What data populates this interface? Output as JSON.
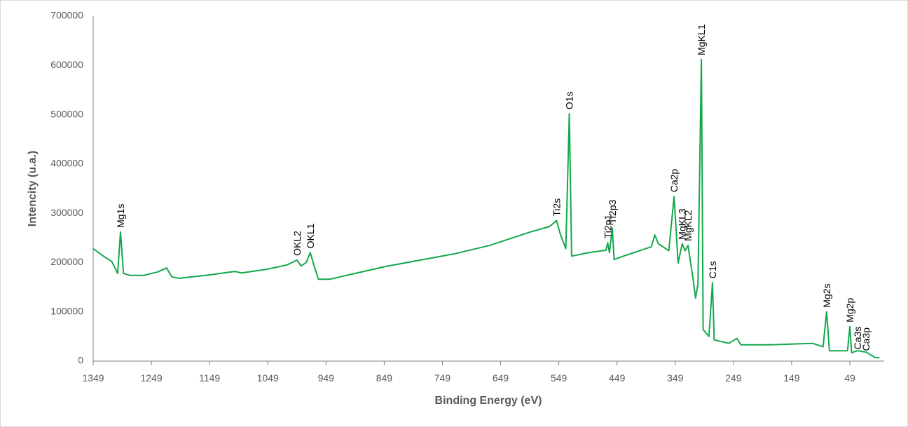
{
  "chart_data": {
    "type": "line",
    "xlabel": "Binding Energy (eV)",
    "ylabel": "Intencity (u.a.)",
    "xlim": [
      1349,
      -10
    ],
    "xticks": [
      1349,
      1249,
      1149,
      1049,
      949,
      849,
      749,
      649,
      549,
      449,
      349,
      249,
      149,
      49
    ],
    "ylim": [
      0,
      700000
    ],
    "yticks": [
      0,
      100000,
      200000,
      300000,
      400000,
      500000,
      600000,
      700000
    ],
    "x": [
      1349,
      1329,
      1317,
      1307,
      1302,
      1297,
      1286,
      1262,
      1238,
      1223,
      1214,
      1202,
      1148,
      1106,
      1094,
      1052,
      1016,
      999,
      992,
      983,
      976,
      970,
      962,
      943,
      847,
      727,
      667,
      595,
      565,
      553,
      546,
      537,
      531,
      527,
      498,
      468,
      465,
      462,
      457,
      454,
      438,
      390,
      384,
      378,
      360,
      351,
      344,
      337,
      332,
      327,
      318,
      314,
      310,
      304,
      301,
      291,
      285,
      282,
      257,
      243,
      236,
      185,
      113,
      95,
      89,
      84,
      53,
      49,
      46,
      36,
      21,
      5,
      -2
    ],
    "series": [
      {
        "color": "#12a84c",
        "values": [
          228000,
          211000,
          202000,
          178000,
          262000,
          178000,
          174000,
          174000,
          181000,
          189000,
          171000,
          168000,
          175000,
          182000,
          179000,
          186000,
          195000,
          205000,
          193000,
          200000,
          220000,
          195000,
          166000,
          166000,
          192000,
          218000,
          235000,
          263000,
          273000,
          285000,
          256000,
          228000,
          502000,
          213000,
          220000,
          225000,
          240000,
          220000,
          270000,
          206000,
          213000,
          232000,
          256000,
          238000,
          224000,
          334000,
          199000,
          238000,
          224000,
          235000,
          164000,
          128000,
          156000,
          612000,
          64000,
          50000,
          159000,
          43000,
          36000,
          46000,
          33000,
          33000,
          36000,
          29000,
          100000,
          21000,
          21000,
          70000,
          17000,
          21000,
          18000,
          7000,
          7000
        ]
      }
    ],
    "annotations": [
      {
        "text": "Mg1s",
        "x": 1302,
        "y": 262000
      },
      {
        "text": "OKL2",
        "x": 999,
        "y": 205000
      },
      {
        "text": "OKL1",
        "x": 976,
        "y": 220000
      },
      {
        "text": "Ti2s",
        "x": 553,
        "y": 285000
      },
      {
        "text": "O1s",
        "x": 531,
        "y": 502000
      },
      {
        "text": "Ti2p1",
        "x": 465,
        "y": 240000
      },
      {
        "text": "Ti2p3",
        "x": 457,
        "y": 270000
      },
      {
        "text": "Ca2p",
        "x": 351,
        "y": 334000
      },
      {
        "text": "MgKL3",
        "x": 337,
        "y": 238000
      },
      {
        "text": "MgKL2",
        "x": 327,
        "y": 235000
      },
      {
        "text": "MgKL1",
        "x": 304,
        "y": 612000
      },
      {
        "text": "C1s",
        "x": 285,
        "y": 159000
      },
      {
        "text": "Mg2s",
        "x": 89,
        "y": 100000
      },
      {
        "text": "Mg2p",
        "x": 49,
        "y": 70000
      },
      {
        "text": "Ca3s",
        "x": 36,
        "y": 15000
      },
      {
        "text": "Ca3p",
        "x": 21,
        "y": 12000
      }
    ]
  }
}
